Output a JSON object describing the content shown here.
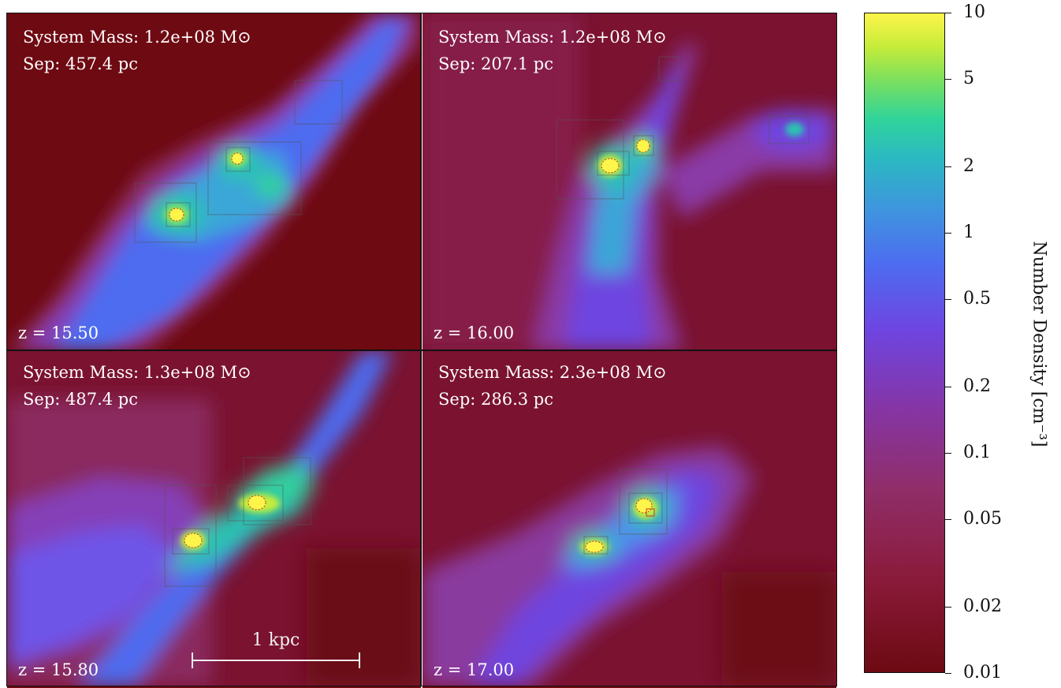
{
  "panels": [
    {
      "mass_label": "System Mass: 1.2e+08 M⊙",
      "sep_label": "Sep: 457.4 pc",
      "z_label": "z = 15.50"
    },
    {
      "mass_label": "System Mass: 1.2e+08 M⊙",
      "sep_label": "Sep: 207.1 pc",
      "z_label": "z = 16.00"
    },
    {
      "mass_label": "System Mass: 1.3e+08 M⊙",
      "sep_label": "Sep: 487.4 pc",
      "z_label": "z = 15.80"
    },
    {
      "mass_label": "System Mass: 2.3e+08 M⊙",
      "sep_label": "Sep: 286.3 pc",
      "z_label": "z = 17.00"
    }
  ],
  "scale_bar": {
    "label": "1 kpc"
  },
  "colorbar": {
    "title": "Number Density [cm⁻³]",
    "ticks": [
      "10",
      "5",
      "2",
      "1",
      "0.5",
      "0.2",
      "0.1",
      "0.05",
      "0.02",
      "0.01"
    ],
    "scale": "log",
    "range": [
      0.01,
      10
    ],
    "colormap": [
      "#6c0a12",
      "#902e6a",
      "#6e45e0",
      "#3f94df",
      "#2bb9c2",
      "#7de05c",
      "#fdf54a"
    ]
  }
}
